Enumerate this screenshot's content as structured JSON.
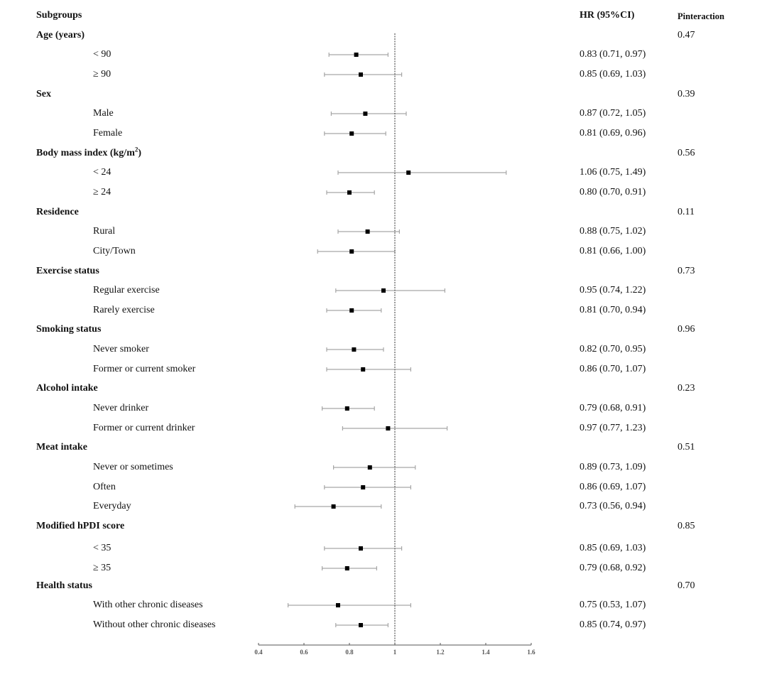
{
  "headers": {
    "subgroups": "Subgroups",
    "hr": "HR (95%CI)",
    "pinteraction": "Pinteraction"
  },
  "colors": {
    "marker": "#000000",
    "ci_line": "#a6a6a6",
    "reference_line": "#555555",
    "axis": "#555555"
  },
  "rows": [
    {
      "type": "group",
      "label": "Age (years)",
      "p": "0.47"
    },
    {
      "type": "sub",
      "label": "< 90",
      "hr_text": "0.83 (0.71, 0.97)"
    },
    {
      "type": "sub",
      "label": "≥ 90",
      "hr_text": "0.85 (0.69, 1.03)"
    },
    {
      "type": "group",
      "label": "Sex",
      "p": "0.39"
    },
    {
      "type": "sub",
      "label": "Male",
      "hr_text": "0.87 (0.72, 1.05)"
    },
    {
      "type": "sub",
      "label": "Female",
      "hr_text": "0.81 (0.69, 0.96)"
    },
    {
      "type": "group",
      "label": "Body mass index (kg/m",
      "label_sup": "2",
      "label_tail": ")",
      "p": "0.56"
    },
    {
      "type": "sub",
      "label": "< 24",
      "hr_text": "1.06 (0.75, 1.49)"
    },
    {
      "type": "sub",
      "label": "≥ 24",
      "hr_text": "0.80 (0.70, 0.91)"
    },
    {
      "type": "group",
      "label": "Residence",
      "p": "0.11"
    },
    {
      "type": "sub",
      "label": "Rural",
      "hr_text": "0.88 (0.75, 1.02)"
    },
    {
      "type": "sub",
      "label": "City/Town",
      "hr_text": "0.81 (0.66, 1.00)"
    },
    {
      "type": "group",
      "label": "Exercise status",
      "p": "0.73"
    },
    {
      "type": "sub",
      "label": "Regular exercise",
      "hr_text": "0.95 (0.74, 1.22)"
    },
    {
      "type": "sub",
      "label": "Rarely exercise",
      "hr_text": "0.81 (0.70, 0.94)"
    },
    {
      "type": "group",
      "label": "Smoking status",
      "p": "0.96"
    },
    {
      "type": "sub",
      "label": "Never smoker",
      "hr_text": "0.82 (0.70, 0.95)"
    },
    {
      "type": "sub",
      "label": "Former or current smoker",
      "hr_text": "0.86 (0.70, 1.07)"
    },
    {
      "type": "group",
      "label": "Alcohol intake",
      "p": "0.23"
    },
    {
      "type": "sub",
      "label": "Never drinker",
      "hr_text": "0.79 (0.68, 0.91)"
    },
    {
      "type": "sub",
      "label": "Former or current drinker",
      "hr_text": "0.97 (0.77, 1.23)"
    },
    {
      "type": "group",
      "label": "Meat intake",
      "p": "0.51"
    },
    {
      "type": "sub",
      "label": "Never or sometimes",
      "hr_text": "0.89 (0.73, 1.09)"
    },
    {
      "type": "sub",
      "label": "Often",
      "hr_text": "0.86 (0.69, 1.07)"
    },
    {
      "type": "sub",
      "label": "Everyday",
      "hr_text": "0.73 (0.56, 0.94)"
    },
    {
      "type": "group",
      "label": "Modified hPDI score",
      "p": "0.85"
    },
    {
      "type": "sub",
      "label": "< 35",
      "hr_text": "0.85 (0.69, 1.03)"
    },
    {
      "type": "sub",
      "label": "≥ 35",
      "hr_text": "0.79 (0.68, 0.92)"
    },
    {
      "type": "group",
      "label": "Health status",
      "p": "0.70"
    },
    {
      "type": "sub",
      "label": "With other chronic diseases",
      "hr_text": "0.75 (0.53, 1.07)"
    },
    {
      "type": "sub",
      "label": "Without other chronic diseases",
      "hr_text": "0.85 (0.74, 0.97)"
    }
  ],
  "chart_data": {
    "type": "forest",
    "title": "",
    "xlabel": "",
    "ylabel": "",
    "xlim": [
      0.4,
      1.6
    ],
    "x_ticks": [
      0.4,
      0.6,
      0.8,
      1.0,
      1.2,
      1.4,
      1.6
    ],
    "x_tick_labels": [
      "0.4",
      "0.6",
      "0.8",
      "1",
      "1.2",
      "1.4",
      "1.6"
    ],
    "reference_line": 1.0,
    "grid": false,
    "points": [
      {
        "group": "Age (years)",
        "label": "< 90",
        "hr": 0.83,
        "lo": 0.71,
        "hi": 0.97
      },
      {
        "group": "Age (years)",
        "label": "≥ 90",
        "hr": 0.85,
        "lo": 0.69,
        "hi": 1.03
      },
      {
        "group": "Sex",
        "label": "Male",
        "hr": 0.87,
        "lo": 0.72,
        "hi": 1.05
      },
      {
        "group": "Sex",
        "label": "Female",
        "hr": 0.81,
        "lo": 0.69,
        "hi": 0.96
      },
      {
        "group": "Body mass index",
        "label": "< 24",
        "hr": 1.06,
        "lo": 0.75,
        "hi": 1.49
      },
      {
        "group": "Body mass index",
        "label": "≥ 24",
        "hr": 0.8,
        "lo": 0.7,
        "hi": 0.91
      },
      {
        "group": "Residence",
        "label": "Rural",
        "hr": 0.88,
        "lo": 0.75,
        "hi": 1.02
      },
      {
        "group": "Residence",
        "label": "City/Town",
        "hr": 0.81,
        "lo": 0.66,
        "hi": 1.0
      },
      {
        "group": "Exercise status",
        "label": "Regular exercise",
        "hr": 0.95,
        "lo": 0.74,
        "hi": 1.22
      },
      {
        "group": "Exercise status",
        "label": "Rarely exercise",
        "hr": 0.81,
        "lo": 0.7,
        "hi": 0.94
      },
      {
        "group": "Smoking status",
        "label": "Never smoker",
        "hr": 0.82,
        "lo": 0.7,
        "hi": 0.95
      },
      {
        "group": "Smoking status",
        "label": "Former or current smoker",
        "hr": 0.86,
        "lo": 0.7,
        "hi": 1.07
      },
      {
        "group": "Alcohol intake",
        "label": "Never drinker",
        "hr": 0.79,
        "lo": 0.68,
        "hi": 0.91
      },
      {
        "group": "Alcohol intake",
        "label": "Former or current drinker",
        "hr": 0.97,
        "lo": 0.77,
        "hi": 1.23
      },
      {
        "group": "Meat intake",
        "label": "Never or sometimes",
        "hr": 0.89,
        "lo": 0.73,
        "hi": 1.09
      },
      {
        "group": "Meat intake",
        "label": "Often",
        "hr": 0.86,
        "lo": 0.69,
        "hi": 1.07
      },
      {
        "group": "Meat intake",
        "label": "Everyday",
        "hr": 0.73,
        "lo": 0.56,
        "hi": 0.94
      },
      {
        "group": "Modified hPDI score",
        "label": "< 35",
        "hr": 0.85,
        "lo": 0.69,
        "hi": 1.03
      },
      {
        "group": "Modified hPDI score",
        "label": "≥ 35",
        "hr": 0.79,
        "lo": 0.68,
        "hi": 0.92
      },
      {
        "group": "Health status",
        "label": "With other chronic diseases",
        "hr": 0.75,
        "lo": 0.53,
        "hi": 1.07
      },
      {
        "group": "Health status",
        "label": "Without other chronic diseases",
        "hr": 0.85,
        "lo": 0.74,
        "hi": 0.97
      }
    ]
  }
}
